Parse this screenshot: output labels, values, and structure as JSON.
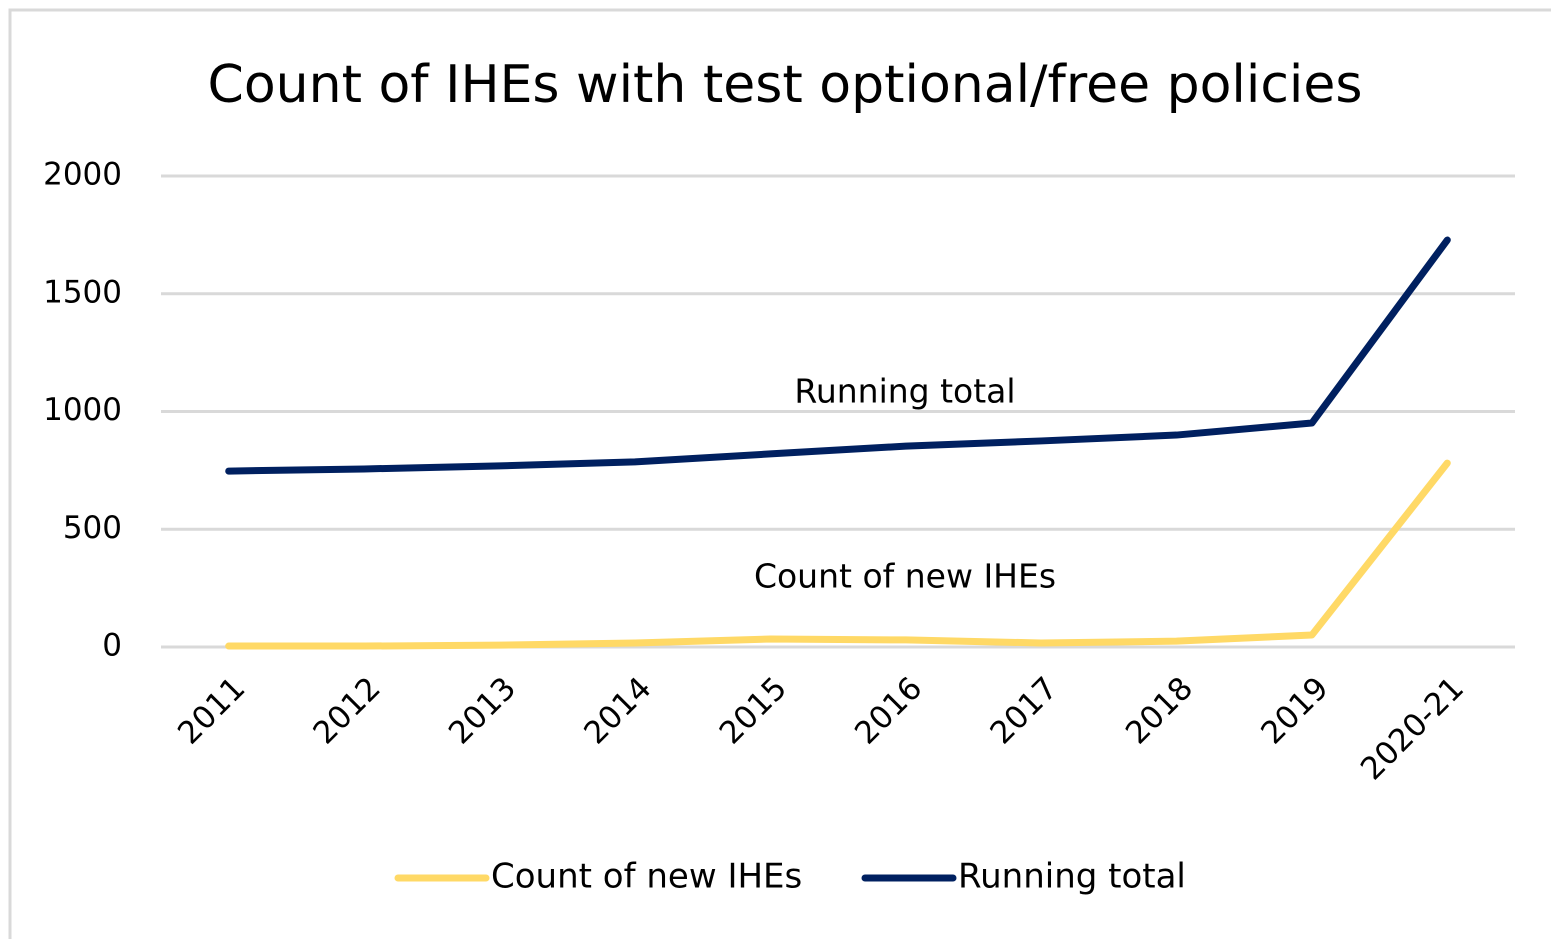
{
  "chart_data": {
    "type": "line",
    "title": "Count of IHEs with test optional/free policies",
    "categories": [
      "2011",
      "2012",
      "2013",
      "2014",
      "2015",
      "2016",
      "2017",
      "2018",
      "2019",
      "2020-21"
    ],
    "series": [
      {
        "name": "Count of new IHEs",
        "color": "#ffd966",
        "values": [
          4,
          4,
          8,
          17,
          34,
          30,
          17,
          25,
          51,
          781
        ]
      },
      {
        "name": "Running total",
        "color": "#002060",
        "values": [
          747,
          756,
          769,
          786,
          820,
          853,
          875,
          900,
          951,
          1728
        ]
      }
    ],
    "annotations": [
      "Running total",
      "Count of new IHEs"
    ],
    "ylim": [
      0,
      2000
    ],
    "yticks": [
      0,
      500,
      1000,
      1500,
      2000
    ],
    "grid": true,
    "legend": "bottom"
  }
}
